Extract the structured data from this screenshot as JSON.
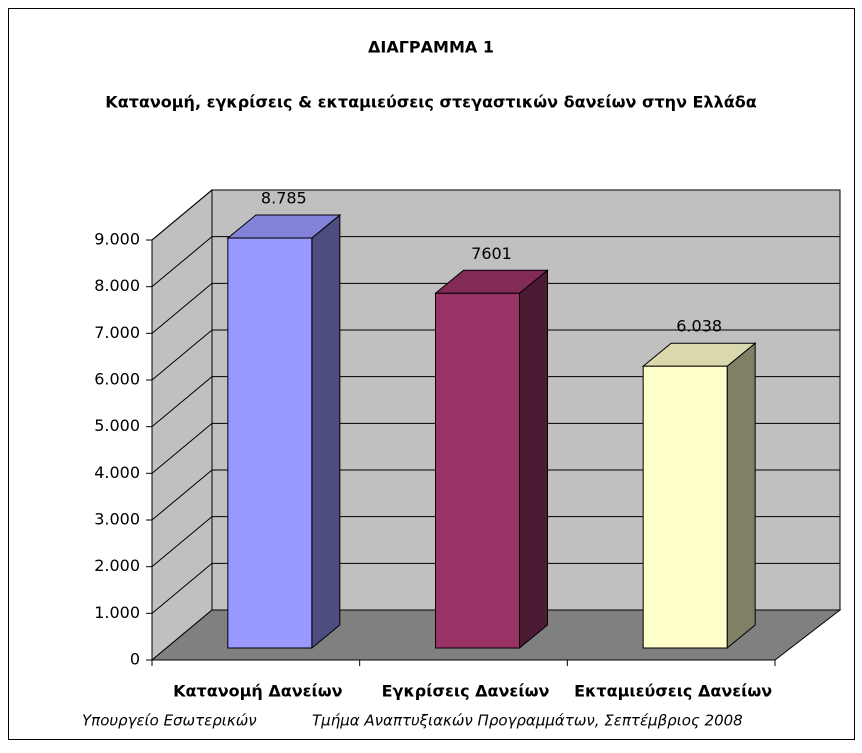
{
  "chart_data": {
    "type": "bar3d",
    "title": "ΔΙΑΓΡΑΜΜΑ 1",
    "subtitle": "Κατανομή, εγκρίσεις & εκταμιεύσεις στεγαστικών δανείων στην Ελλάδα",
    "categories": [
      "Κατανομή Δανείων",
      "Εγκρίσεις Δανείων",
      "Εκταμιεύσεις Δανείων"
    ],
    "values": [
      8785,
      7601,
      6038
    ],
    "value_labels": [
      "8.785",
      "7601",
      "6.038"
    ],
    "colors": [
      "#9999ff",
      "#993366",
      "#ffffcc"
    ],
    "ylim": [
      0,
      9000
    ],
    "yticks": [
      0,
      {
        "value": 1000,
        "label": "1.000"
      },
      {
        "value": 2000,
        "label": "2.000"
      },
      {
        "value": 3000,
        "label": "3.000"
      },
      {
        "value": 4000,
        "label": "4.000"
      },
      {
        "value": 5000,
        "label": "5.000"
      },
      {
        "value": 6000,
        "label": "6.000"
      },
      {
        "value": 7000,
        "label": "7.000"
      },
      {
        "value": 8000,
        "label": "8.000"
      },
      {
        "value": 9000,
        "label": "9.000"
      }
    ],
    "grid": true,
    "footnotes": [
      "Υπουργείο Εσωτερικών",
      "Τμήμα Αναπτυξιακών Προγραμμάτων, Σεπτέμβριος 2008"
    ]
  }
}
